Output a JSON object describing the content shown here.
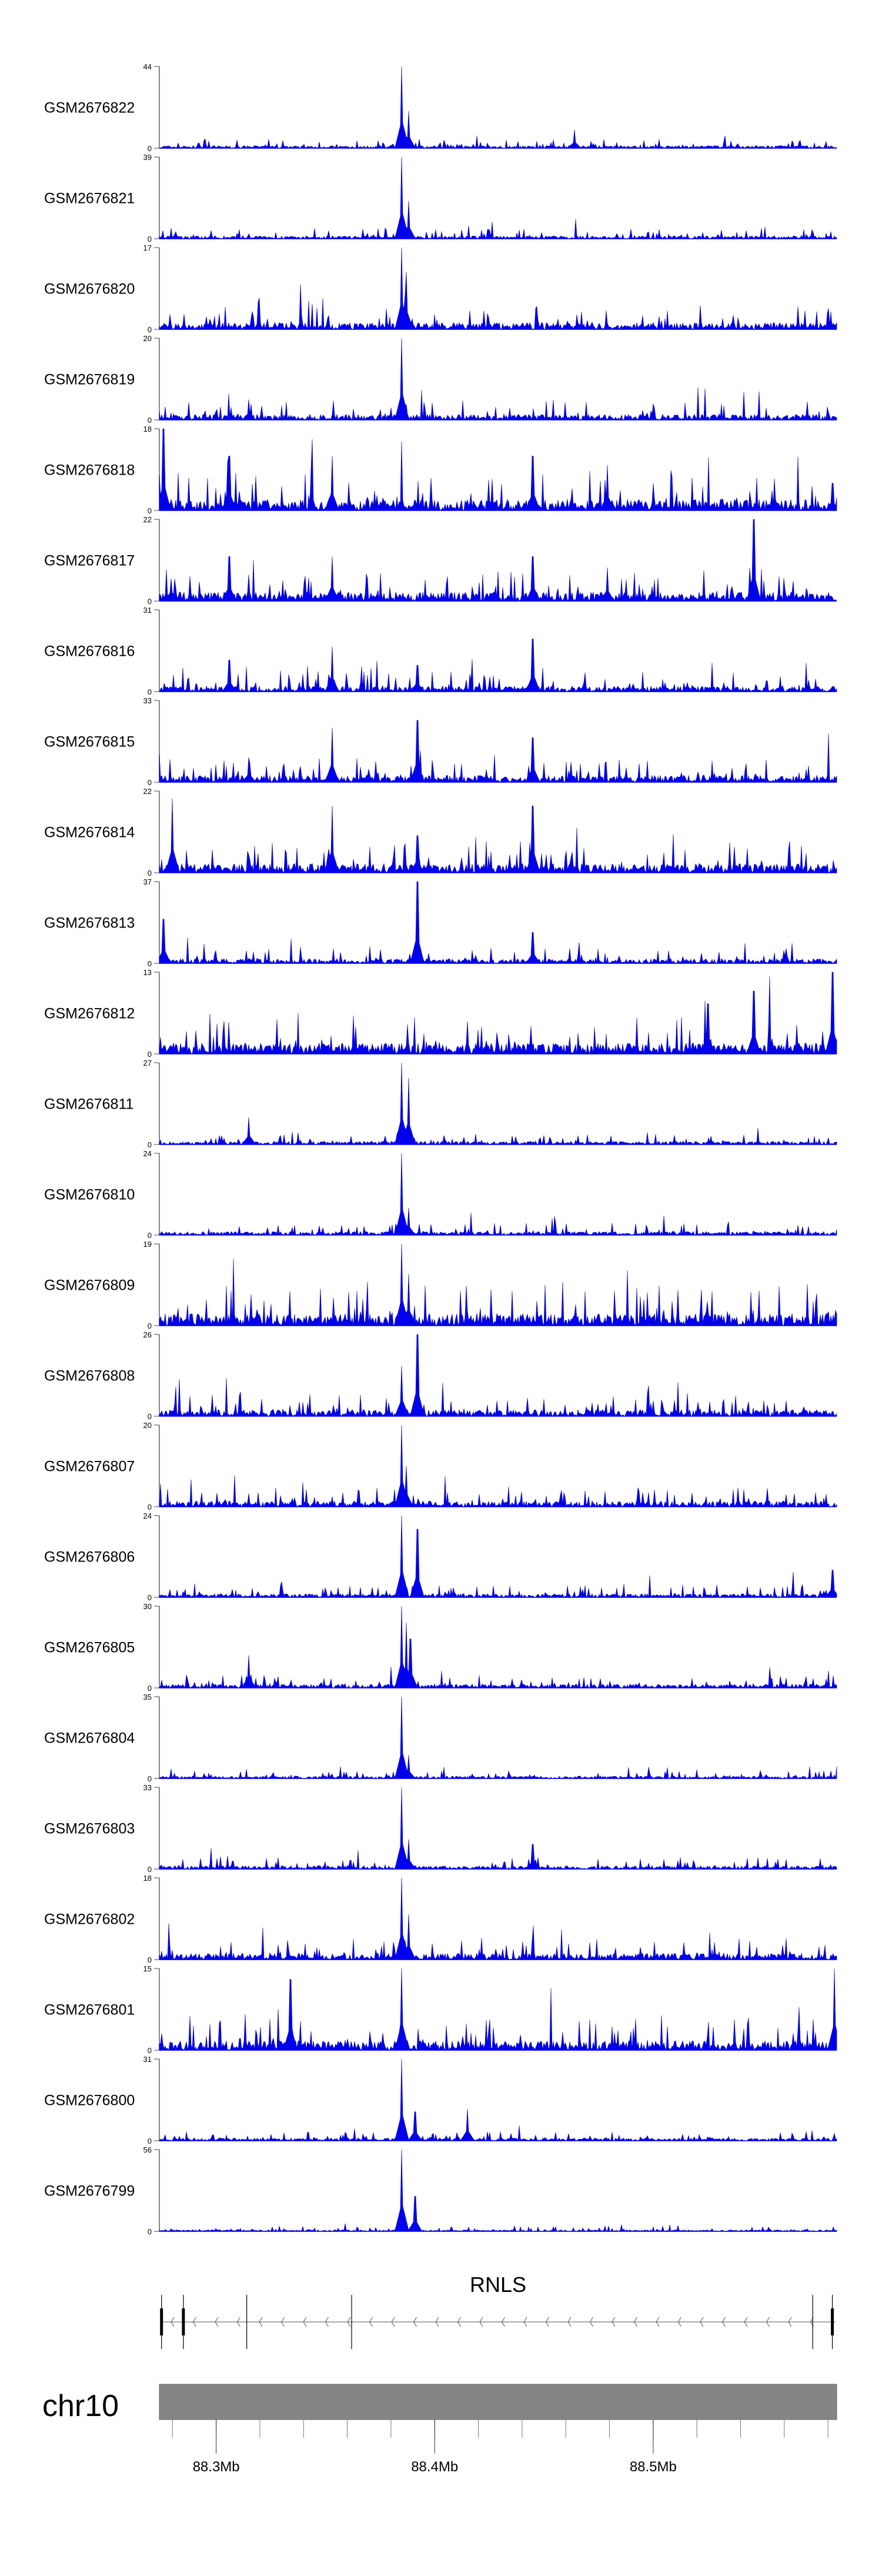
{
  "chart_data": {
    "type": "area",
    "title": "",
    "xlabel": "",
    "x_range_mb": [
      88.274,
      88.584
    ],
    "signal_color": "#0000ee",
    "tracks": [
      {
        "name": "GSM2676822",
        "ymax": 44,
        "noise": 4,
        "peaks": [
          [
            88.385,
            44
          ],
          [
            88.388,
            20
          ],
          [
            88.464,
            10
          ]
        ]
      },
      {
        "name": "GSM2676821",
        "ymax": 39,
        "noise": 4,
        "peaks": [
          [
            88.385,
            39
          ],
          [
            88.388,
            18
          ]
        ]
      },
      {
        "name": "GSM2676820",
        "ymax": 17,
        "noise": 4,
        "peaks": [
          [
            88.385,
            17
          ],
          [
            88.387,
            12
          ]
        ]
      },
      {
        "name": "GSM2676819",
        "ymax": 20,
        "noise": 4,
        "peaks": [
          [
            88.385,
            20
          ],
          [
            88.315,
            5
          ]
        ]
      },
      {
        "name": "GSM2676818",
        "ymax": 18,
        "noise": 7,
        "peaks": [
          [
            88.276,
            18
          ],
          [
            88.306,
            12
          ],
          [
            88.353,
            12
          ],
          [
            88.445,
            12
          ],
          [
            88.479,
            10
          ],
          [
            88.582,
            6
          ]
        ]
      },
      {
        "name": "GSM2676817",
        "ymax": 22,
        "noise": 7,
        "peaks": [
          [
            88.306,
            12
          ],
          [
            88.353,
            12
          ],
          [
            88.445,
            12
          ],
          [
            88.546,
            22
          ],
          [
            88.479,
            9
          ]
        ]
      },
      {
        "name": "GSM2676816",
        "ymax": 31,
        "noise": 6,
        "peaks": [
          [
            88.306,
            12
          ],
          [
            88.353,
            17
          ],
          [
            88.392,
            10
          ],
          [
            88.445,
            20
          ]
        ]
      },
      {
        "name": "GSM2676815",
        "ymax": 33,
        "noise": 8,
        "peaks": [
          [
            88.353,
            22
          ],
          [
            88.392,
            25
          ],
          [
            88.445,
            18
          ],
          [
            88.315,
            10
          ]
        ]
      },
      {
        "name": "GSM2676814",
        "ymax": 22,
        "noise": 7,
        "peaks": [
          [
            88.28,
            20
          ],
          [
            88.353,
            18
          ],
          [
            88.392,
            10
          ],
          [
            88.445,
            18
          ]
        ]
      },
      {
        "name": "GSM2676813",
        "ymax": 37,
        "noise": 6,
        "peaks": [
          [
            88.392,
            37
          ],
          [
            88.276,
            20
          ],
          [
            88.445,
            14
          ]
        ]
      },
      {
        "name": "GSM2676812",
        "ymax": 13,
        "noise": 5,
        "peaks": [
          [
            88.582,
            13
          ],
          [
            88.546,
            10
          ],
          [
            88.525,
            8
          ]
        ]
      },
      {
        "name": "GSM2676811",
        "ymax": 27,
        "noise": 3,
        "peaks": [
          [
            88.385,
            27
          ],
          [
            88.388,
            22
          ],
          [
            88.315,
            9
          ]
        ]
      },
      {
        "name": "GSM2676810",
        "ymax": 24,
        "noise": 3,
        "peaks": [
          [
            88.385,
            24
          ],
          [
            88.388,
            8
          ]
        ]
      },
      {
        "name": "GSM2676809",
        "ymax": 19,
        "noise": 8,
        "peaks": [
          [
            88.385,
            19
          ],
          [
            88.388,
            12
          ]
        ]
      },
      {
        "name": "GSM2676808",
        "ymax": 26,
        "noise": 6,
        "peaks": [
          [
            88.392,
            26
          ],
          [
            88.385,
            16
          ]
        ]
      },
      {
        "name": "GSM2676807",
        "ymax": 20,
        "noise": 4,
        "peaks": [
          [
            88.385,
            20
          ],
          [
            88.387,
            10
          ]
        ]
      },
      {
        "name": "GSM2676806",
        "ymax": 24,
        "noise": 3,
        "peaks": [
          [
            88.385,
            24
          ],
          [
            88.392,
            20
          ],
          [
            88.582,
            8
          ]
        ]
      },
      {
        "name": "GSM2676805",
        "ymax": 30,
        "noise": 4,
        "peaks": [
          [
            88.385,
            30
          ],
          [
            88.387,
            24
          ],
          [
            88.389,
            18
          ],
          [
            88.315,
            12
          ]
        ]
      },
      {
        "name": "GSM2676804",
        "ymax": 35,
        "noise": 3,
        "peaks": [
          [
            88.385,
            35
          ],
          [
            88.388,
            10
          ]
        ]
      },
      {
        "name": "GSM2676803",
        "ymax": 33,
        "noise": 4,
        "peaks": [
          [
            88.385,
            33
          ],
          [
            88.388,
            12
          ],
          [
            88.445,
            10
          ]
        ]
      },
      {
        "name": "GSM2676802",
        "ymax": 18,
        "noise": 4,
        "peaks": [
          [
            88.385,
            18
          ],
          [
            88.388,
            10
          ]
        ]
      },
      {
        "name": "GSM2676801",
        "ymax": 15,
        "noise": 5,
        "peaks": [
          [
            88.385,
            15
          ],
          [
            88.583,
            15
          ],
          [
            88.334,
            13
          ]
        ]
      },
      {
        "name": "GSM2676800",
        "ymax": 31,
        "noise": 3,
        "peaks": [
          [
            88.385,
            31
          ],
          [
            88.391,
            11
          ],
          [
            88.415,
            12
          ]
        ]
      },
      {
        "name": "GSM2676799",
        "ymax": 56,
        "noise": 3,
        "peaks": [
          [
            88.385,
            56
          ],
          [
            88.391,
            24
          ]
        ]
      }
    ],
    "gene": {
      "name": "RNLS",
      "strand": "-",
      "exons_mb": [
        88.275,
        88.285,
        88.314,
        88.362,
        88.573,
        88.582
      ]
    },
    "chromosome": {
      "name": "chr10",
      "tick_labels": [
        "88.3Mb",
        "88.4Mb",
        "88.5Mb"
      ],
      "tick_values": [
        88.3,
        88.4,
        88.5
      ],
      "minor_step": 0.02
    }
  }
}
